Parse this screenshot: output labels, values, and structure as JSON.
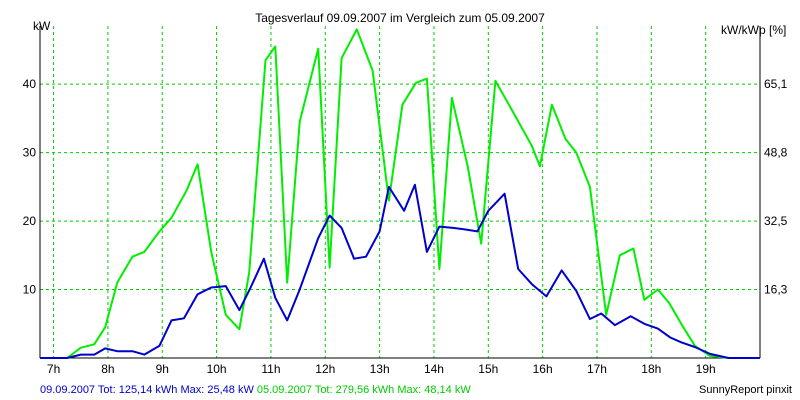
{
  "chart_data": {
    "type": "line",
    "title": "Tagesverlauf 09.09.2007 im Vergleich zum 05.09.2007",
    "ylabel_left": "kW",
    "ylabel_right": "kW/kWp [%]",
    "x_ticks": [
      "7h",
      "8h",
      "9h",
      "10h",
      "11h",
      "12h",
      "13h",
      "14h",
      "15h",
      "16h",
      "17h",
      "18h",
      "19h"
    ],
    "xlim": [
      6.75,
      20.0
    ],
    "ylim": [
      0,
      48.5
    ],
    "y_ticks_left": [
      "10",
      "20",
      "30",
      "40"
    ],
    "y_ticks_left_values": [
      10,
      20,
      30,
      40
    ],
    "y_ticks_right": [
      "16,3",
      "32,5",
      "48,8",
      "65,1"
    ],
    "y_ticks_right_values": [
      10,
      20,
      30,
      40
    ],
    "grid": true,
    "series": [
      {
        "name": "05.09.2007",
        "color": "#00ee00",
        "x": [
          6.75,
          7.25,
          7.5,
          7.75,
          7.95,
          8.17,
          8.45,
          8.67,
          8.95,
          9.17,
          9.45,
          9.65,
          9.9,
          10.17,
          10.42,
          10.6,
          10.9,
          11.08,
          11.3,
          11.53,
          11.87,
          12.08,
          12.3,
          12.58,
          12.87,
          13.17,
          13.42,
          13.67,
          13.87,
          14.1,
          14.33,
          14.62,
          14.87,
          15.13,
          15.45,
          15.8,
          15.95,
          16.17,
          16.42,
          16.62,
          16.87,
          17.17,
          17.42,
          17.67,
          17.87,
          18.12,
          18.33,
          18.55,
          18.8,
          19.08,
          19.42,
          19.67,
          20.0
        ],
        "values": [
          0.0,
          0.0,
          1.5,
          2.0,
          4.5,
          11.0,
          14.8,
          15.5,
          18.5,
          20.5,
          24.5,
          28.3,
          15.5,
          6.3,
          4.2,
          12.5,
          43.5,
          45.5,
          11.0,
          34.5,
          45.2,
          13.2,
          43.8,
          48.0,
          42.0,
          23.0,
          37.0,
          40.2,
          40.8,
          13.0,
          38.0,
          28.0,
          16.7,
          40.5,
          36.0,
          31.0,
          28.0,
          37.0,
          32.0,
          30.0,
          25.0,
          6.3,
          15.0,
          16.0,
          8.5,
          10.0,
          8.0,
          5.0,
          1.8,
          0.3,
          0.0,
          0.0,
          0.0
        ]
      },
      {
        "name": "09.09.2007",
        "color": "#0000cc",
        "x": [
          6.75,
          7.25,
          7.5,
          7.75,
          7.95,
          8.17,
          8.45,
          8.67,
          8.95,
          9.17,
          9.4,
          9.65,
          9.9,
          10.17,
          10.42,
          10.62,
          10.87,
          11.08,
          11.3,
          11.53,
          11.87,
          12.08,
          12.3,
          12.53,
          12.75,
          13.0,
          13.17,
          13.45,
          13.65,
          13.87,
          14.1,
          14.35,
          14.55,
          14.8,
          15.0,
          15.3,
          15.55,
          15.8,
          16.07,
          16.35,
          16.62,
          16.87,
          17.08,
          17.33,
          17.62,
          17.87,
          18.12,
          18.35,
          18.55,
          18.8,
          19.08,
          19.42,
          19.67,
          20.0
        ],
        "values": [
          0.0,
          0.0,
          0.5,
          0.5,
          1.4,
          1.0,
          1.0,
          0.5,
          1.8,
          5.5,
          5.8,
          9.3,
          10.3,
          10.5,
          7.0,
          10.2,
          14.5,
          8.8,
          5.5,
          10.0,
          17.5,
          20.8,
          19.0,
          14.5,
          14.8,
          18.5,
          25.0,
          21.5,
          25.3,
          15.5,
          19.2,
          19.0,
          18.8,
          18.5,
          21.5,
          24.0,
          13.0,
          10.8,
          9.0,
          12.8,
          9.8,
          5.7,
          6.5,
          4.8,
          6.1,
          5.0,
          4.3,
          3.0,
          2.3,
          1.6,
          0.6,
          0.0,
          0.0,
          0.0
        ]
      }
    ]
  },
  "footer": {
    "legend1_date": "09.09.2007",
    "legend1_stats": "Tot: 125,14 kWh Max: 25,48 kW",
    "legend2_date": "05.09.2007",
    "legend2_stats": "Tot: 279,56 kWh Max: 48,14 kW",
    "credit": "SunnyReport pinxit"
  }
}
